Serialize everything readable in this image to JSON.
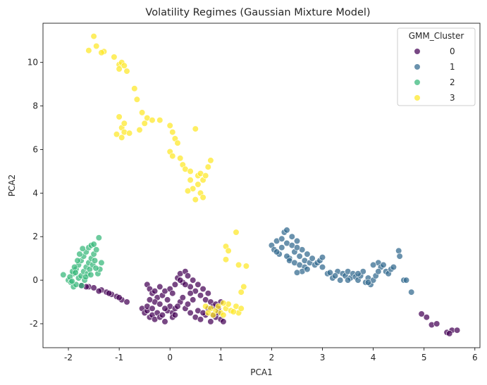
{
  "chart_data": {
    "type": "scatter",
    "title": "Volatility Regimes (Gaussian Mixture Model)",
    "xlabel": "PCA1",
    "ylabel": "PCA2",
    "xlim": [
      -2.5,
      6.1
    ],
    "ylim": [
      -3.1,
      11.8
    ],
    "xticks": [
      -2,
      -1,
      0,
      1,
      2,
      3,
      4,
      5,
      6
    ],
    "yticks": [
      -2,
      0,
      2,
      4,
      6,
      8,
      10
    ],
    "grid": false,
    "legend": {
      "title": "GMM_Cluster",
      "placement": "top-right"
    },
    "series": [
      {
        "name": "0",
        "color": "#440154",
        "points": [
          [
            -1.75,
            -0.25
          ],
          [
            -1.6,
            -0.3
          ],
          [
            -1.5,
            -0.35
          ],
          [
            -1.35,
            -0.45
          ],
          [
            -1.25,
            -0.55
          ],
          [
            -1.15,
            -0.65
          ],
          [
            -1.05,
            -0.75
          ],
          [
            -0.95,
            -0.9
          ],
          [
            -0.85,
            -1.0
          ],
          [
            -1.4,
            -0.5
          ],
          [
            -1.2,
            -0.6
          ],
          [
            -1.0,
            -0.8
          ],
          [
            -1.65,
            -0.3
          ],
          [
            -0.55,
            -1.3
          ],
          [
            -0.5,
            -1.5
          ],
          [
            -0.45,
            -1.4
          ],
          [
            -0.4,
            -1.7
          ],
          [
            -0.35,
            -1.6
          ],
          [
            -0.3,
            -1.8
          ],
          [
            -0.25,
            -1.5
          ],
          [
            -0.2,
            -1.7
          ],
          [
            -0.15,
            -1.6
          ],
          [
            -0.1,
            -1.9
          ],
          [
            -0.05,
            -1.4
          ],
          [
            0.0,
            -1.2
          ],
          [
            0.05,
            -1.5
          ],
          [
            0.1,
            -1.3
          ],
          [
            -0.45,
            -1.2
          ],
          [
            -0.35,
            -1.3
          ],
          [
            -0.45,
            -0.2
          ],
          [
            -0.4,
            -0.4
          ],
          [
            -0.35,
            -0.6
          ],
          [
            -0.3,
            -0.5
          ],
          [
            -0.25,
            -0.8
          ],
          [
            -0.2,
            -0.3
          ],
          [
            -0.15,
            -0.7
          ],
          [
            -0.1,
            -0.5
          ],
          [
            -0.05,
            -0.9
          ],
          [
            0.0,
            -0.4
          ],
          [
            0.05,
            -0.6
          ],
          [
            0.1,
            -0.2
          ],
          [
            0.15,
            0.1
          ],
          [
            0.2,
            0.3
          ],
          [
            0.25,
            -0.1
          ],
          [
            0.3,
            0.4
          ],
          [
            0.35,
            0.2
          ],
          [
            0.4,
            -0.3
          ],
          [
            0.45,
            0.0
          ],
          [
            0.5,
            -0.5
          ],
          [
            0.55,
            -0.2
          ],
          [
            0.6,
            -0.7
          ],
          [
            0.65,
            -0.4
          ],
          [
            0.7,
            -0.9
          ],
          [
            0.75,
            -0.6
          ],
          [
            0.8,
            -1.0
          ],
          [
            0.85,
            -1.2
          ],
          [
            0.9,
            -1.1
          ],
          [
            0.95,
            -1.3
          ],
          [
            1.0,
            -1.0
          ],
          [
            0.2,
            -1.0
          ],
          [
            0.3,
            -1.3
          ],
          [
            0.4,
            -1.5
          ],
          [
            0.5,
            -1.7
          ],
          [
            0.6,
            -1.8
          ],
          [
            0.7,
            -1.6
          ],
          [
            0.8,
            -1.9
          ],
          [
            0.9,
            -1.7
          ],
          [
            1.0,
            -1.8
          ],
          [
            1.05,
            -1.9
          ],
          [
            0.25,
            -0.8
          ],
          [
            0.35,
            -1.1
          ],
          [
            0.45,
            -0.9
          ],
          [
            0.15,
            -1.2
          ],
          [
            0.55,
            -1.4
          ],
          [
            0.65,
            -1.5
          ],
          [
            0.75,
            -1.3
          ],
          [
            0.85,
            -1.6
          ],
          [
            0.95,
            -1.5
          ],
          [
            -0.3,
            -1.0
          ],
          [
            -0.2,
            -1.1
          ],
          [
            -0.1,
            -1.3
          ],
          [
            0.05,
            -1.7
          ],
          [
            0.1,
            -1.6
          ],
          [
            -0.4,
            -0.9
          ],
          [
            0.2,
            0.0
          ],
          [
            0.3,
            -0.2
          ],
          [
            0.4,
            -0.6
          ],
          [
            4.95,
            -1.55
          ],
          [
            5.05,
            -1.7
          ],
          [
            5.15,
            -2.05
          ],
          [
            5.25,
            -2.0
          ],
          [
            5.45,
            -2.4
          ],
          [
            5.55,
            -2.3
          ],
          [
            5.65,
            -2.3
          ],
          [
            5.5,
            -2.45
          ]
        ]
      },
      {
        "name": "1",
        "color": "#31688e",
        "points": [
          [
            2.0,
            1.6
          ],
          [
            2.05,
            1.4
          ],
          [
            2.1,
            1.8
          ],
          [
            2.15,
            1.2
          ],
          [
            2.2,
            1.5
          ],
          [
            2.25,
            2.2
          ],
          [
            2.3,
            1.7
          ],
          [
            2.35,
            1.0
          ],
          [
            2.4,
            1.6
          ],
          [
            2.45,
            1.3
          ],
          [
            2.5,
            1.8
          ],
          [
            2.55,
            1.1
          ],
          [
            2.6,
            1.4
          ],
          [
            2.65,
            0.9
          ],
          [
            2.7,
            1.2
          ],
          [
            2.75,
            0.8
          ],
          [
            2.8,
            1.0
          ],
          [
            2.85,
            0.7
          ],
          [
            2.9,
            0.8
          ],
          [
            2.95,
            0.9
          ],
          [
            2.3,
            2.3
          ],
          [
            2.2,
            1.9
          ],
          [
            2.4,
            2.0
          ],
          [
            2.5,
            1.5
          ],
          [
            2.1,
            1.3
          ],
          [
            2.3,
            1.1
          ],
          [
            2.35,
            0.9
          ],
          [
            2.45,
            0.8
          ],
          [
            2.55,
            0.7
          ],
          [
            2.65,
            0.6
          ],
          [
            3.0,
            1.05
          ],
          [
            2.6,
            0.4
          ],
          [
            2.7,
            0.5
          ],
          [
            2.5,
            0.35
          ],
          [
            3.0,
            0.6
          ],
          [
            3.1,
            0.3
          ],
          [
            3.2,
            0.1
          ],
          [
            3.3,
            0.4
          ],
          [
            3.35,
            0.0
          ],
          [
            3.4,
            0.3
          ],
          [
            3.45,
            0.2
          ],
          [
            3.5,
            0.4
          ],
          [
            3.55,
            0.1
          ],
          [
            3.6,
            0.3
          ],
          [
            3.65,
            0.15
          ],
          [
            3.7,
            0.0
          ],
          [
            3.75,
            0.2
          ],
          [
            3.8,
            0.4
          ],
          [
            3.85,
            -0.1
          ],
          [
            3.9,
            0.1
          ],
          [
            3.95,
            -0.2
          ],
          [
            4.0,
            0.0
          ],
          [
            4.05,
            0.2
          ],
          [
            4.1,
            0.8
          ],
          [
            4.15,
            0.6
          ],
          [
            4.2,
            0.7
          ],
          [
            4.25,
            0.4
          ],
          [
            4.3,
            0.3
          ],
          [
            4.35,
            0.5
          ],
          [
            4.4,
            0.6
          ],
          [
            4.5,
            1.35
          ],
          [
            4.52,
            1.1
          ],
          [
            4.6,
            0.0
          ],
          [
            4.65,
            0.0
          ],
          [
            4.75,
            -0.55
          ],
          [
            3.25,
            0.2
          ],
          [
            3.15,
            0.35
          ],
          [
            3.5,
            0.0
          ],
          [
            3.7,
            0.3
          ],
          [
            3.9,
            -0.1
          ],
          [
            4.0,
            0.7
          ],
          [
            4.1,
            0.4
          ]
        ]
      },
      {
        "name": "2",
        "color": "#35b779",
        "points": [
          [
            -2.1,
            0.25
          ],
          [
            -2.0,
            0.0
          ],
          [
            -1.95,
            -0.1
          ],
          [
            -1.9,
            0.3
          ],
          [
            -1.85,
            0.5
          ],
          [
            -1.8,
            0.7
          ],
          [
            -1.75,
            0.9
          ],
          [
            -1.7,
            1.1
          ],
          [
            -1.65,
            1.3
          ],
          [
            -1.6,
            1.5
          ],
          [
            -1.55,
            1.6
          ],
          [
            -1.5,
            1.65
          ],
          [
            -1.9,
            -0.3
          ],
          [
            -1.85,
            -0.2
          ],
          [
            -1.8,
            0.1
          ],
          [
            -1.75,
            0.2
          ],
          [
            -1.7,
            0.4
          ],
          [
            -1.65,
            0.6
          ],
          [
            -1.6,
            0.8
          ],
          [
            -1.55,
            1.0
          ],
          [
            -1.5,
            1.2
          ],
          [
            -1.45,
            1.4
          ],
          [
            -1.92,
            0.4
          ],
          [
            -1.88,
            0.6
          ],
          [
            -1.82,
            0.9
          ],
          [
            -1.78,
            1.2
          ],
          [
            -1.72,
            1.45
          ],
          [
            -1.68,
            0.0
          ],
          [
            -1.62,
            0.3
          ],
          [
            -1.58,
            0.5
          ],
          [
            -1.52,
            0.7
          ],
          [
            -1.48,
            0.9
          ],
          [
            -1.42,
            0.3
          ],
          [
            -1.38,
            0.5
          ],
          [
            -1.35,
            0.8
          ],
          [
            -1.97,
            0.15
          ],
          [
            -1.93,
            -0.05
          ],
          [
            -1.86,
            0.35
          ],
          [
            -1.4,
            1.95
          ],
          [
            -1.74,
            -0.25
          ],
          [
            -1.66,
            0.15
          ],
          [
            -1.56,
            0.25
          ],
          [
            -1.46,
            0.55
          ]
        ]
      },
      {
        "name": "3",
        "color": "#fde725",
        "points": [
          [
            -1.5,
            11.2
          ],
          [
            -1.45,
            10.75
          ],
          [
            -1.6,
            10.55
          ],
          [
            -1.3,
            10.5
          ],
          [
            -1.35,
            10.45
          ],
          [
            -1.1,
            10.25
          ],
          [
            -1.0,
            9.9
          ],
          [
            -0.95,
            10.0
          ],
          [
            -0.9,
            9.85
          ],
          [
            -1.0,
            9.7
          ],
          [
            -0.85,
            9.6
          ],
          [
            -0.7,
            8.8
          ],
          [
            -0.65,
            8.3
          ],
          [
            -0.55,
            7.7
          ],
          [
            -0.45,
            7.45
          ],
          [
            -0.35,
            7.35
          ],
          [
            -0.2,
            7.35
          ],
          [
            -0.5,
            7.2
          ],
          [
            -0.6,
            6.9
          ],
          [
            -1.0,
            7.5
          ],
          [
            -0.95,
            7.0
          ],
          [
            -0.9,
            6.8
          ],
          [
            -0.8,
            6.75
          ],
          [
            -1.05,
            6.7
          ],
          [
            -0.95,
            6.55
          ],
          [
            -0.9,
            7.2
          ],
          [
            0.0,
            7.1
          ],
          [
            0.05,
            6.8
          ],
          [
            0.1,
            6.5
          ],
          [
            0.15,
            6.3
          ],
          [
            0.0,
            5.9
          ],
          [
            0.05,
            5.7
          ],
          [
            0.2,
            5.6
          ],
          [
            0.25,
            5.3
          ],
          [
            0.3,
            5.1
          ],
          [
            0.4,
            5.0
          ],
          [
            0.5,
            6.95
          ],
          [
            0.55,
            4.8
          ],
          [
            0.6,
            4.9
          ],
          [
            0.65,
            4.6
          ],
          [
            0.7,
            4.8
          ],
          [
            0.75,
            5.2
          ],
          [
            0.8,
            5.5
          ],
          [
            0.55,
            4.4
          ],
          [
            0.45,
            4.2
          ],
          [
            0.35,
            4.1
          ],
          [
            0.5,
            3.7
          ],
          [
            0.6,
            4.0
          ],
          [
            0.65,
            3.8
          ],
          [
            0.4,
            4.6
          ],
          [
            0.7,
            -1.2
          ],
          [
            0.8,
            -1.3
          ],
          [
            0.9,
            -1.4
          ],
          [
            1.0,
            -1.5
          ],
          [
            1.1,
            -1.3
          ],
          [
            1.2,
            -1.4
          ],
          [
            1.3,
            -1.2
          ],
          [
            1.35,
            -1.5
          ],
          [
            1.4,
            -1.3
          ],
          [
            0.75,
            -1.5
          ],
          [
            0.85,
            -1.6
          ],
          [
            0.95,
            -1.2
          ],
          [
            1.05,
            -1.6
          ],
          [
            1.15,
            -1.1
          ],
          [
            1.25,
            -1.45
          ],
          [
            1.1,
            1.55
          ],
          [
            1.15,
            1.35
          ],
          [
            1.1,
            0.95
          ],
          [
            1.3,
            2.2
          ],
          [
            1.35,
            0.7
          ],
          [
            1.5,
            0.65
          ],
          [
            1.45,
            -0.3
          ],
          [
            1.4,
            -0.55
          ],
          [
            1.05,
            -1.05
          ]
        ]
      }
    ]
  }
}
